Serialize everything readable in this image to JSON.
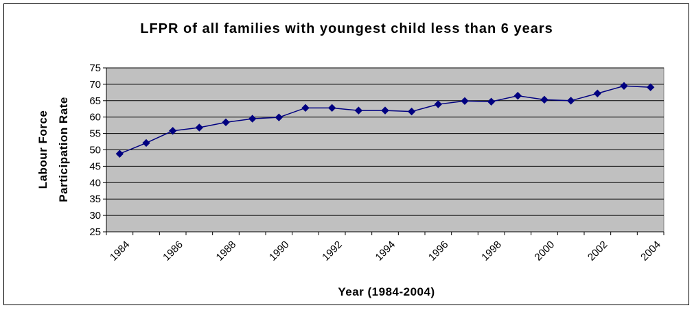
{
  "chart_data": {
    "type": "line",
    "title": "LFPR of all families with youngest child less than 6 years",
    "xlabel": "Year (1984-2004)",
    "ylabel": [
      "Labour Force",
      "Participation Rate"
    ],
    "ylim": [
      25,
      75
    ],
    "yticks": [
      25,
      30,
      35,
      40,
      45,
      50,
      55,
      60,
      65,
      70,
      75
    ],
    "xticks": [
      "1984",
      "1986",
      "1988",
      "1990",
      "1992",
      "1994",
      "1996",
      "1998",
      "2000",
      "2002",
      "2004"
    ],
    "grid": true,
    "legend": "none",
    "x": [
      1984,
      1985,
      1986,
      1987,
      1988,
      1989,
      1990,
      1991,
      1992,
      1993,
      1994,
      1995,
      1996,
      1997,
      1998,
      1999,
      2000,
      2001,
      2002,
      2003,
      2004
    ],
    "series": [
      {
        "values": [
          48.8,
          52.1,
          55.8,
          56.8,
          58.4,
          59.5,
          59.9,
          62.8,
          62.8,
          62.0,
          62.0,
          61.7,
          63.9,
          64.9,
          64.7,
          66.5,
          65.3,
          65.0,
          67.2,
          69.5,
          69.1
        ]
      }
    ],
    "colors": {
      "plot_background": "#c0c0c0",
      "line": "#000080",
      "marker": "#000080",
      "gridline": "#000000"
    }
  }
}
